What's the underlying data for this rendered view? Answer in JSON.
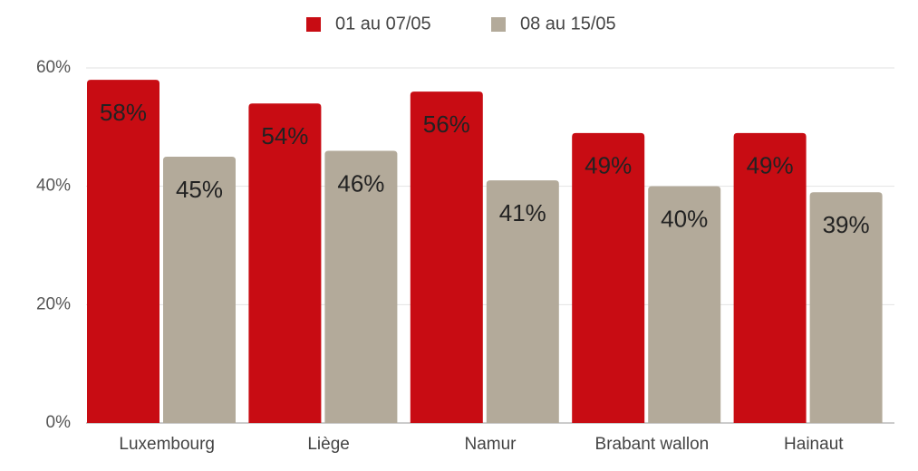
{
  "chart_data": {
    "type": "bar",
    "categories": [
      "Luxembourg",
      "Liège",
      "Namur",
      "Brabant wallon",
      "Hainaut"
    ],
    "series": [
      {
        "name": "01 au 07/05",
        "color": "#c80c13",
        "values": [
          58,
          54,
          56,
          49,
          49
        ],
        "value_labels": [
          "58%",
          "54%",
          "56%",
          "49%",
          "49%"
        ]
      },
      {
        "name": "08 au 15/05",
        "color": "#b3aa9a",
        "values": [
          45,
          46,
          41,
          40,
          39
        ],
        "value_labels": [
          "45%",
          "46%",
          "41%",
          "40%",
          "39%"
        ]
      }
    ],
    "ylim": [
      0,
      60
    ],
    "yticks": [
      {
        "value": 0,
        "label": "0%"
      },
      {
        "value": 20,
        "label": "20%"
      },
      {
        "value": 40,
        "label": "40%"
      },
      {
        "value": 60,
        "label": "60%"
      }
    ],
    "grid": true,
    "legend": "top"
  }
}
